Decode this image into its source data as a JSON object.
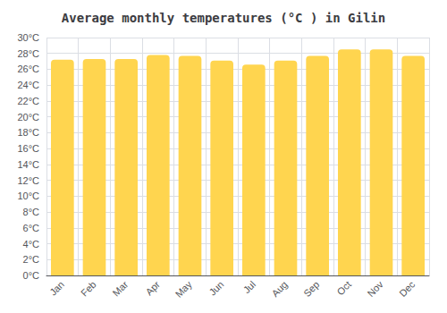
{
  "chart_data": {
    "type": "bar",
    "title": "Average monthly temperatures (°C ) in Gilin",
    "categories": [
      "Jan",
      "Feb",
      "Mar",
      "Apr",
      "May",
      "Jun",
      "Jul",
      "Aug",
      "Sep",
      "Oct",
      "Nov",
      "Dec"
    ],
    "values": [
      27.2,
      27.3,
      27.3,
      27.8,
      27.7,
      27.1,
      26.6,
      27.1,
      27.7,
      28.5,
      28.5,
      27.7
    ],
    "color": "#FFD54F",
    "ylim": [
      0,
      30
    ],
    "yticks": [
      {
        "value": 0,
        "label": "0°C"
      },
      {
        "value": 2,
        "label": "2°C"
      },
      {
        "value": 4,
        "label": "4°C"
      },
      {
        "value": 6,
        "label": "6°C"
      },
      {
        "value": 8,
        "label": "8°C"
      },
      {
        "value": 10,
        "label": "10°C"
      },
      {
        "value": 12,
        "label": "12°C"
      },
      {
        "value": 14,
        "label": "14°C"
      },
      {
        "value": 16,
        "label": "16°C"
      },
      {
        "value": 18,
        "label": "18°C"
      },
      {
        "value": 20,
        "label": "20°C"
      },
      {
        "value": 22,
        "label": "22°C"
      },
      {
        "value": 24,
        "label": "24°C"
      },
      {
        "value": 26,
        "label": "26°C"
      },
      {
        "value": 28,
        "label": "28°C"
      },
      {
        "value": 30,
        "label": "30°C"
      }
    ],
    "grid": true
  }
}
